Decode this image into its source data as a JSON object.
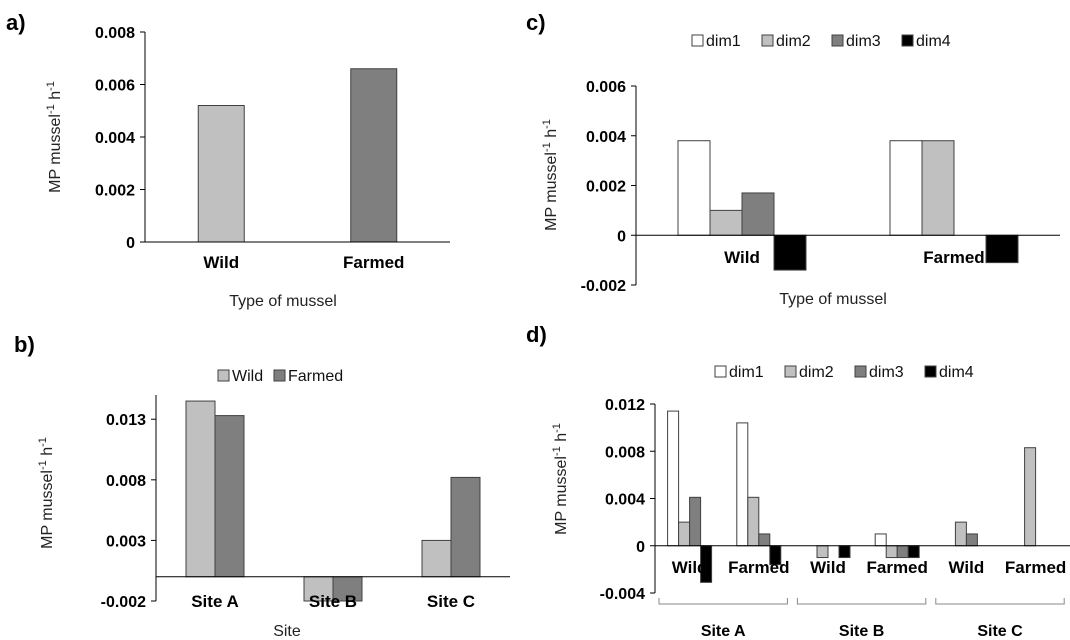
{
  "colors": {
    "dim1": "#ffffff",
    "dim2": "#c0c0c0",
    "dim3": "#7f7f7f",
    "dim4": "#000000",
    "wild": "#c0c0c0",
    "farmed": "#7f7f7f",
    "edge": "#404040",
    "axis": "#000000"
  },
  "chart_data": [
    {
      "panel": "a)",
      "type": "bar",
      "title": "",
      "categories": [
        "Wild",
        "Farmed"
      ],
      "series": [
        {
          "values": [
            0.0052,
            0.0066
          ]
        }
      ],
      "xlabel": "Type of mussel",
      "ylabel": "MP mussel",
      "ylabel_sup": "-1",
      "ylabel_tail": " h",
      "ylabel_sup2": "-1",
      "ylim": [
        0,
        0.008
      ],
      "yticks": [
        "0",
        "0.002",
        "0.004",
        "0.006",
        "0.008"
      ],
      "legend": "none",
      "grid": false
    },
    {
      "panel": "b)",
      "type": "bar",
      "title": "",
      "categories": [
        "Site A",
        "Site B",
        "Site C"
      ],
      "series": [
        {
          "name": "Wild",
          "values": [
            0.0145,
            -0.002,
            0.003
          ]
        },
        {
          "name": "Farmed",
          "values": [
            0.0133,
            -0.002,
            0.0082
          ]
        }
      ],
      "xlabel": "Site",
      "ylabel": "MP mussel",
      "ylabel_sup": "-1",
      "ylabel_tail": " h",
      "ylabel_sup2": "-1",
      "ylim": [
        -0.002,
        0.015
      ],
      "yticks": [
        "-0.002",
        "0.003",
        "0.008",
        "0.013"
      ],
      "legend": "top-center",
      "grid": false
    },
    {
      "panel": "c)",
      "type": "bar",
      "title": "",
      "categories": [
        "Wild",
        "Farmed"
      ],
      "series": [
        {
          "name": "dim1",
          "values": [
            0.0038,
            0.0038
          ]
        },
        {
          "name": "dim2",
          "values": [
            0.001,
            0.0038
          ]
        },
        {
          "name": "dim3",
          "values": [
            0.0017,
            0
          ]
        },
        {
          "name": "dim4",
          "values": [
            -0.0014,
            -0.0011
          ]
        }
      ],
      "xlabel": "Type of mussel",
      "ylabel": "MP mussel",
      "ylabel_sup": "-1",
      "ylabel_tail": " h",
      "ylabel_sup2": "-1",
      "ylim": [
        -0.002,
        0.006
      ],
      "yticks": [
        "-0.002",
        "0",
        "0.002",
        "0.004",
        "0.006"
      ],
      "legend": "top-center",
      "grid": false
    },
    {
      "panel": "d)",
      "type": "bar",
      "title": "",
      "groups": [
        "Site A",
        "Site B",
        "Site C"
      ],
      "categories": [
        "Wild",
        "Farmed",
        "Wild",
        "Farmed",
        "Wild",
        "Farmed"
      ],
      "series": [
        {
          "name": "dim1",
          "values": [
            0.0114,
            0.0104,
            0,
            0.001,
            0,
            0
          ]
        },
        {
          "name": "dim2",
          "values": [
            0.002,
            0.0041,
            -0.001,
            -0.001,
            0.002,
            0.0083
          ]
        },
        {
          "name": "dim3",
          "values": [
            0.0041,
            0.001,
            0,
            -0.001,
            0.001,
            0
          ]
        },
        {
          "name": "dim4",
          "values": [
            -0.0031,
            -0.0016,
            -0.001,
            -0.001,
            0,
            0
          ]
        }
      ],
      "xlabel": "",
      "ylabel": "MP mussel",
      "ylabel_sup": "-1",
      "ylabel_tail": " h",
      "ylabel_sup2": "-1",
      "ylim": [
        -0.004,
        0.012
      ],
      "yticks": [
        "-0.004",
        "0",
        "0.004",
        "0.008",
        "0.012"
      ],
      "legend": "top-center",
      "grid": false
    }
  ]
}
